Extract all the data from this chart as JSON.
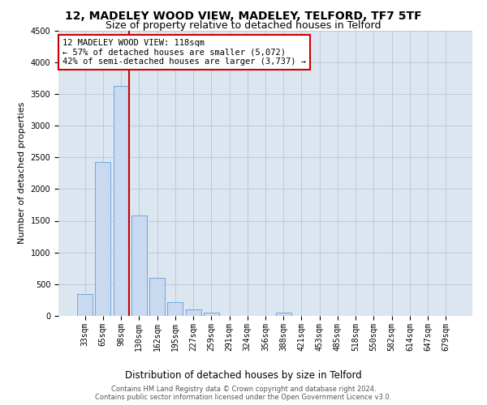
{
  "title": "12, MADELEY WOOD VIEW, MADELEY, TELFORD, TF7 5TF",
  "subtitle": "Size of property relative to detached houses in Telford",
  "xlabel": "Distribution of detached houses by size in Telford",
  "ylabel": "Number of detached properties",
  "categories": [
    "33sqm",
    "65sqm",
    "98sqm",
    "130sqm",
    "162sqm",
    "195sqm",
    "227sqm",
    "259sqm",
    "291sqm",
    "324sqm",
    "356sqm",
    "388sqm",
    "421sqm",
    "453sqm",
    "485sqm",
    "518sqm",
    "550sqm",
    "582sqm",
    "614sqm",
    "647sqm",
    "679sqm"
  ],
  "values": [
    350,
    2420,
    3620,
    1580,
    600,
    215,
    100,
    55,
    0,
    0,
    0,
    55,
    0,
    0,
    0,
    0,
    0,
    0,
    0,
    0,
    0
  ],
  "bar_color": "#c9d9f0",
  "bar_edge_color": "#6fa8dc",
  "property_line_color": "#cc0000",
  "annotation_text": "12 MADELEY WOOD VIEW: 118sqm\n← 57% of detached houses are smaller (5,072)\n42% of semi-detached houses are larger (3,737) →",
  "annotation_box_color": "#ffffff",
  "annotation_box_edge": "#cc0000",
  "ylim": [
    0,
    4500
  ],
  "yticks": [
    0,
    500,
    1000,
    1500,
    2000,
    2500,
    3000,
    3500,
    4000,
    4500
  ],
  "grid_color": "#b0b8cc",
  "bg_color": "#dce6f1",
  "footer_line1": "Contains HM Land Registry data © Crown copyright and database right 2024.",
  "footer_line2": "Contains public sector information licensed under the Open Government Licence v3.0.",
  "title_fontsize": 10,
  "subtitle_fontsize": 9,
  "tick_fontsize": 7,
  "ylabel_fontsize": 8,
  "xlabel_fontsize": 8.5,
  "footer_fontsize": 6,
  "annot_fontsize": 7.5
}
